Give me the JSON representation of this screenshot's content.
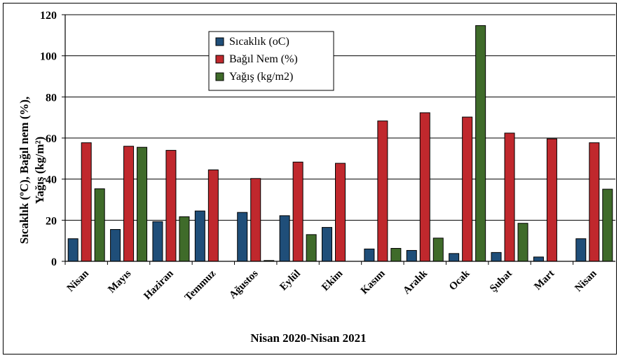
{
  "chart_data": {
    "type": "bar",
    "title": "",
    "xlabel": "Nisan 2020-Nisan 2021",
    "ylabel_line1": "Sıcaklık (ºC), Bağıl nem (%),",
    "ylabel_line2": "Yağış (kg/m²)",
    "ylim": [
      0,
      120
    ],
    "yticks": [
      "0",
      "20",
      "40",
      "60",
      "80",
      "100",
      "120"
    ],
    "grid": true,
    "legend_position": "top-left",
    "categories": [
      "Nisan",
      "Mayıs",
      "Haziran",
      "Temmuz",
      "Ağustos",
      "Eylül",
      "Ekim",
      "Kasım",
      "Aralık",
      "Ocak",
      "Şubat",
      "Mart",
      "Nisan"
    ],
    "series": [
      {
        "name": "Sıcaklık (oC)",
        "color": "#1F4E79",
        "values": [
          11,
          15.5,
          19.3,
          24.5,
          23.8,
          22.2,
          16.5,
          6,
          5.3,
          3.8,
          4.3,
          2.1,
          11
        ]
      },
      {
        "name": "Bağıl Nem (%)",
        "color": "#C0282D",
        "values": [
          57.7,
          56,
          54,
          44.5,
          40.3,
          48.3,
          47.7,
          68.3,
          72.3,
          70.2,
          62.4,
          59.6,
          57.7
        ]
      },
      {
        "name": "Yağış (kg/m2)",
        "color": "#3F6B2A",
        "values": [
          35.3,
          55.5,
          21.7,
          0,
          0.4,
          13,
          0,
          6.3,
          11.3,
          114.7,
          18.5,
          0,
          35.1
        ]
      }
    ]
  }
}
